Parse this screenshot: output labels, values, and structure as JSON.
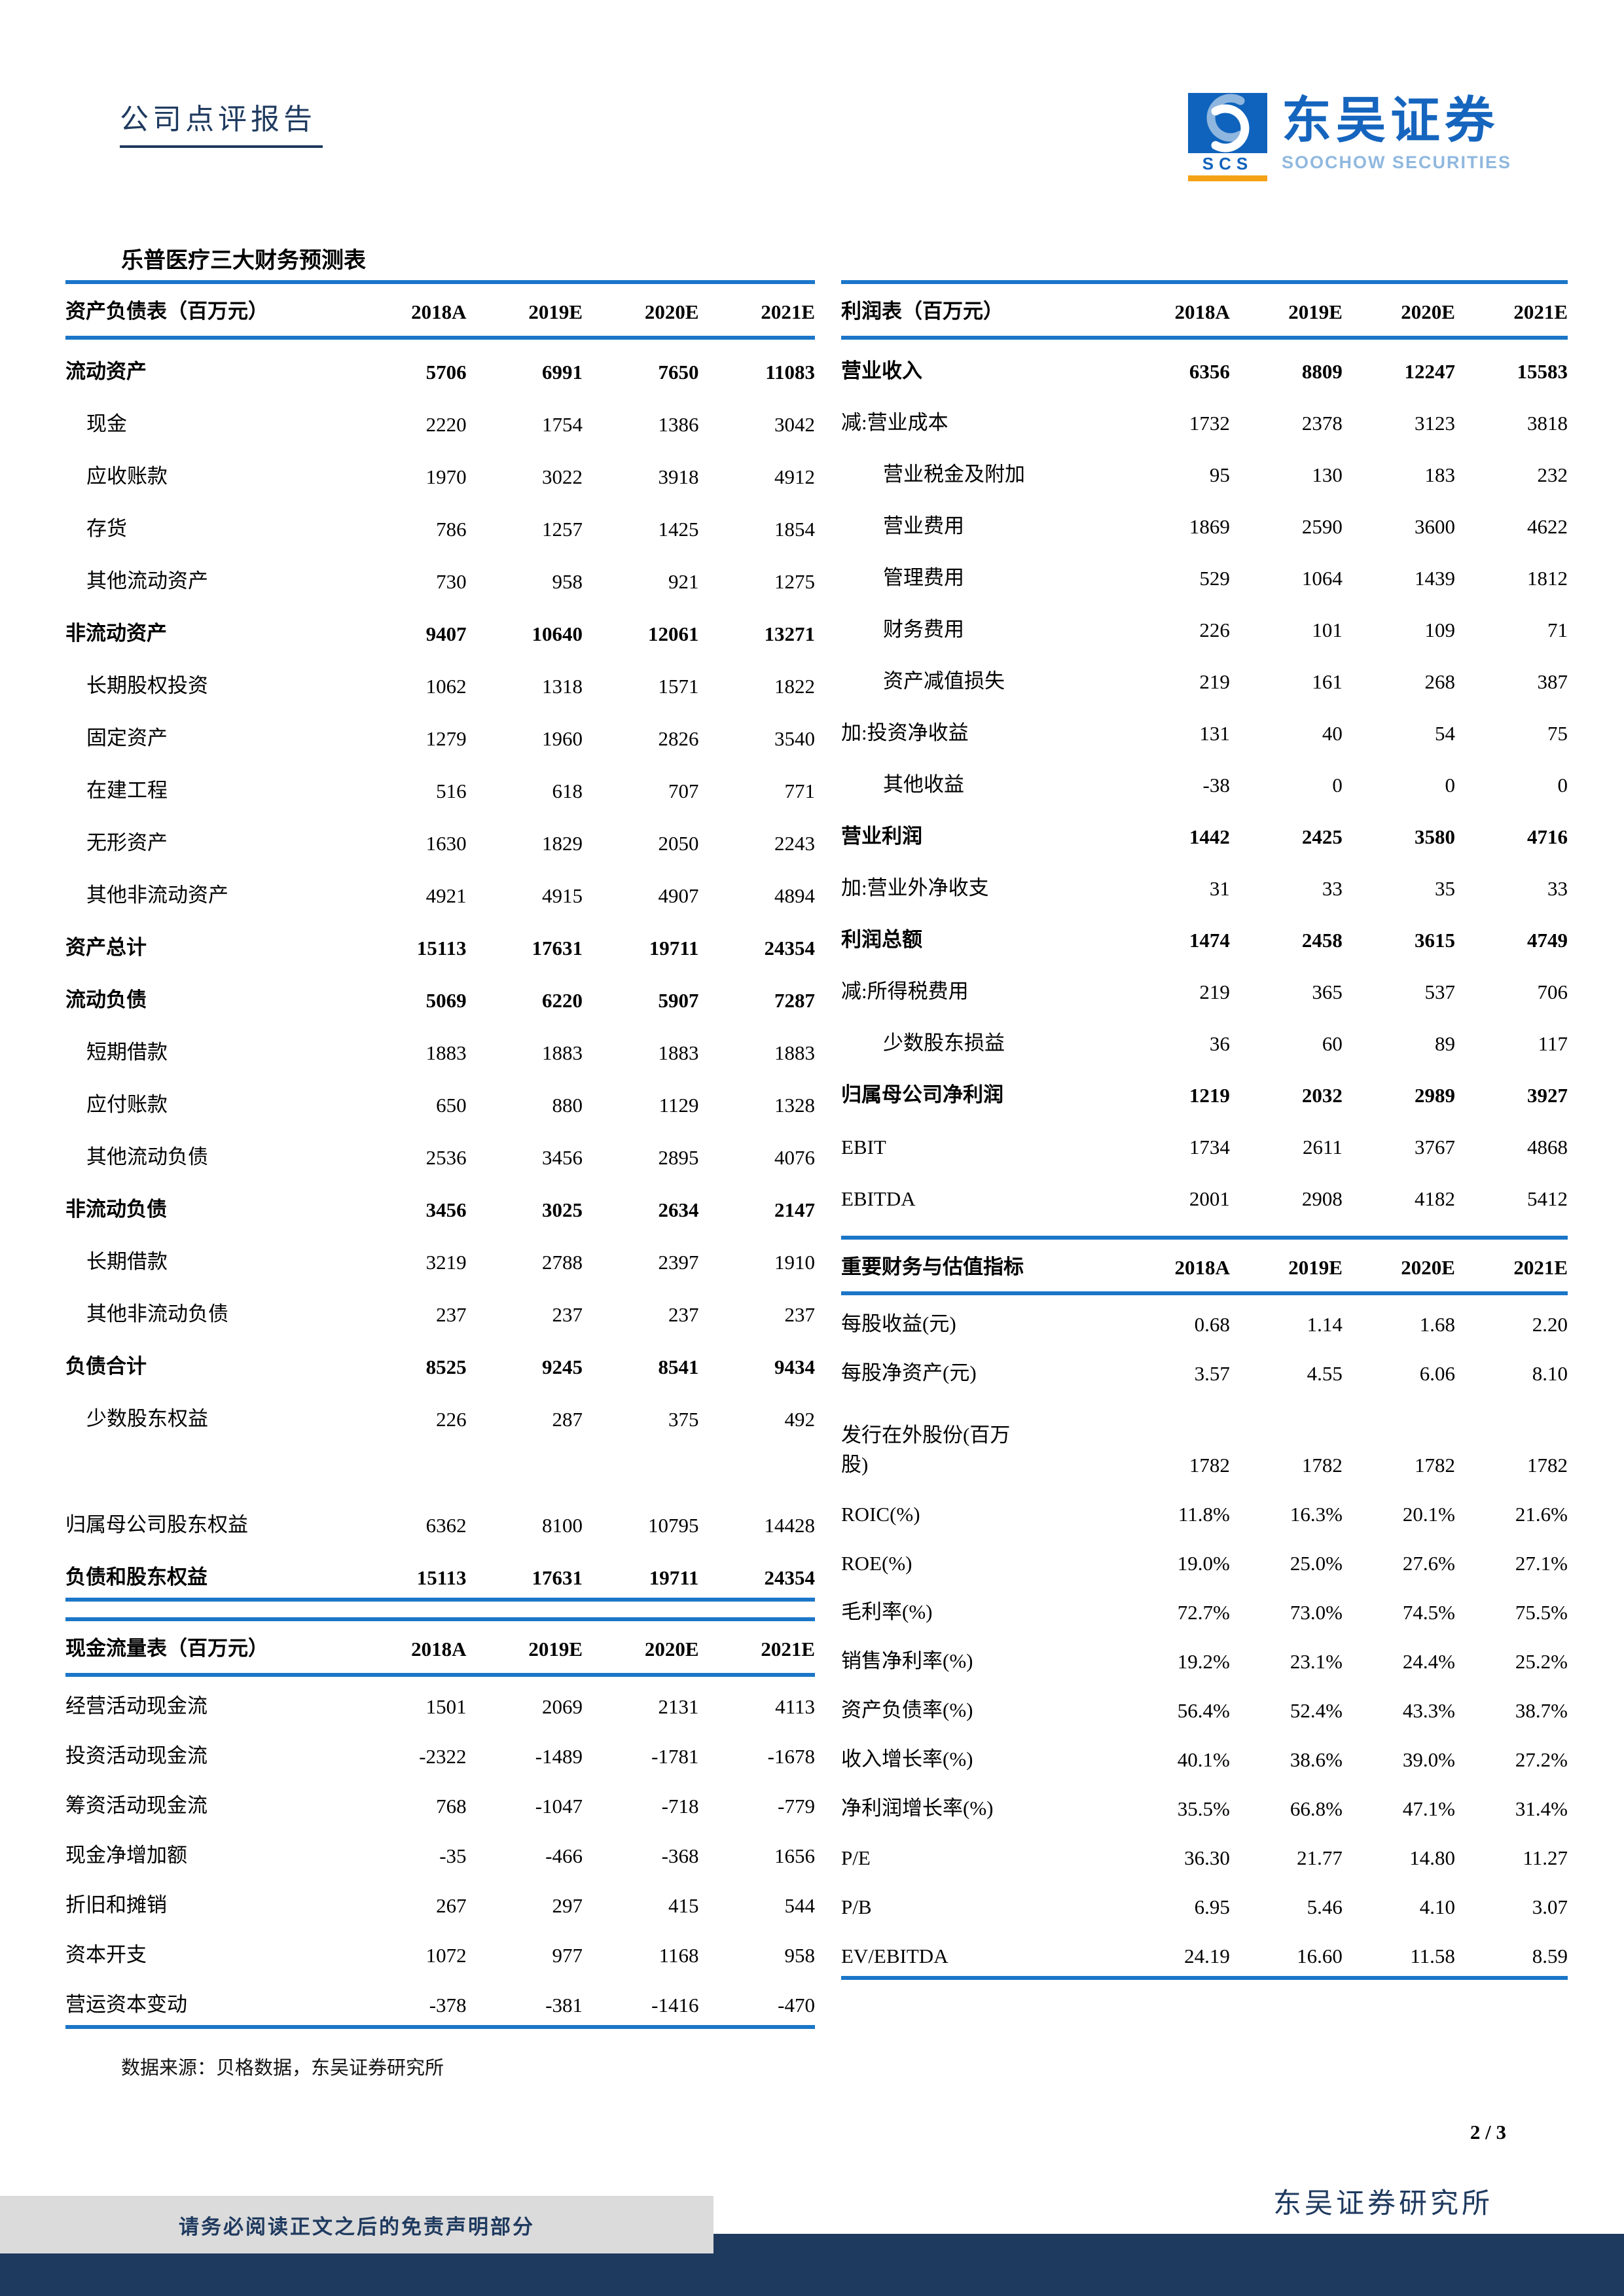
{
  "header": {
    "report_type": "公司点评报告",
    "logo": {
      "scs": "SCS",
      "cn_name": "东吴证券",
      "en_name": "SOOCHOW SECURITIES"
    }
  },
  "title": "乐普医疗三大财务预测表",
  "years": [
    "2018A",
    "2019E",
    "2020E",
    "2021E"
  ],
  "tables": {
    "balance_sheet": {
      "title": "资产负债表（百万元）",
      "rows": [
        {
          "label": "流动资产",
          "values": [
            "5706",
            "6991",
            "7650",
            "11083"
          ],
          "bold": true,
          "indent": 0
        },
        {
          "label": "现金",
          "values": [
            "2220",
            "1754",
            "1386",
            "3042"
          ],
          "indent": 1
        },
        {
          "label": "应收账款",
          "values": [
            "1970",
            "3022",
            "3918",
            "4912"
          ],
          "indent": 1
        },
        {
          "label": "存货",
          "values": [
            "786",
            "1257",
            "1425",
            "1854"
          ],
          "indent": 1
        },
        {
          "label": "其他流动资产",
          "values": [
            "730",
            "958",
            "921",
            "1275"
          ],
          "indent": 1
        },
        {
          "label": "非流动资产",
          "values": [
            "9407",
            "10640",
            "12061",
            "13271"
          ],
          "bold": true,
          "indent": 0
        },
        {
          "label": "长期股权投资",
          "values": [
            "1062",
            "1318",
            "1571",
            "1822"
          ],
          "indent": 1
        },
        {
          "label": "固定资产",
          "values": [
            "1279",
            "1960",
            "2826",
            "3540"
          ],
          "indent": 1
        },
        {
          "label": "在建工程",
          "values": [
            "516",
            "618",
            "707",
            "771"
          ],
          "indent": 1
        },
        {
          "label": "无形资产",
          "values": [
            "1630",
            "1829",
            "2050",
            "2243"
          ],
          "indent": 1
        },
        {
          "label": "其他非流动资产",
          "values": [
            "4921",
            "4915",
            "4907",
            "4894"
          ],
          "indent": 1
        },
        {
          "label": "资产总计",
          "values": [
            "15113",
            "17631",
            "19711",
            "24354"
          ],
          "bold": true,
          "indent": 0
        },
        {
          "label": "流动负债",
          "values": [
            "5069",
            "6220",
            "5907",
            "7287"
          ],
          "bold": true,
          "indent": 0
        },
        {
          "label": "短期借款",
          "values": [
            "1883",
            "1883",
            "1883",
            "1883"
          ],
          "indent": 1
        },
        {
          "label": "应付账款",
          "values": [
            "650",
            "880",
            "1129",
            "1328"
          ],
          "indent": 1
        },
        {
          "label": "其他流动负债",
          "values": [
            "2536",
            "3456",
            "2895",
            "4076"
          ],
          "indent": 1
        },
        {
          "label": "非流动负债",
          "values": [
            "3456",
            "3025",
            "2634",
            "2147"
          ],
          "bold": true,
          "indent": 0
        },
        {
          "label": "长期借款",
          "values": [
            "3219",
            "2788",
            "2397",
            "1910"
          ],
          "indent": 1
        },
        {
          "label": "其他非流动负债",
          "values": [
            "237",
            "237",
            "237",
            "237"
          ],
          "indent": 1
        },
        {
          "label": "负债合计",
          "values": [
            "8525",
            "9245",
            "8541",
            "9434"
          ],
          "bold": true,
          "indent": 0
        },
        {
          "label": "少数股东权益",
          "values": [
            "226",
            "287",
            "375",
            "492"
          ],
          "indent": 1
        },
        {
          "blank": true
        },
        {
          "label": "归属母公司股东权益",
          "values": [
            "6362",
            "8100",
            "10795",
            "14428"
          ],
          "indent": 0
        },
        {
          "label": "负债和股东权益",
          "values": [
            "15113",
            "17631",
            "19711",
            "24354"
          ],
          "bold": true,
          "indent": 0
        }
      ]
    },
    "cash_flow": {
      "title": "现金流量表（百万元）",
      "rows": [
        {
          "label": "经营活动现金流",
          "values": [
            "1501",
            "2069",
            "2131",
            "4113"
          ],
          "indent": 0
        },
        {
          "label": "投资活动现金流",
          "values": [
            "-2322",
            "-1489",
            "-1781",
            "-1678"
          ],
          "indent": 0
        },
        {
          "label": "筹资活动现金流",
          "values": [
            "768",
            "-1047",
            "-718",
            "-779"
          ],
          "indent": 0
        },
        {
          "label": "现金净增加额",
          "values": [
            "-35",
            "-466",
            "-368",
            "1656"
          ],
          "indent": 0
        },
        {
          "label": "折旧和摊销",
          "values": [
            "267",
            "297",
            "415",
            "544"
          ],
          "indent": 0
        },
        {
          "label": "资本开支",
          "values": [
            "1072",
            "977",
            "1168",
            "958"
          ],
          "indent": 0
        },
        {
          "label": "营运资本变动",
          "values": [
            "-378",
            "-381",
            "-1416",
            "-470"
          ],
          "indent": 0
        }
      ]
    },
    "income_statement": {
      "title": "利润表（百万元）",
      "rows": [
        {
          "label": "营业收入",
          "values": [
            "6356",
            "8809",
            "12247",
            "15583"
          ],
          "bold": true,
          "indent": 0
        },
        {
          "label": "减:营业成本",
          "values": [
            "1732",
            "2378",
            "3123",
            "3818"
          ],
          "indent": 0
        },
        {
          "label": "营业税金及附加",
          "values": [
            "95",
            "130",
            "183",
            "232"
          ],
          "indent": 2
        },
        {
          "label": "营业费用",
          "values": [
            "1869",
            "2590",
            "3600",
            "4622"
          ],
          "indent": 2
        },
        {
          "label": "管理费用",
          "values": [
            "529",
            "1064",
            "1439",
            "1812"
          ],
          "indent": 2
        },
        {
          "label": "财务费用",
          "values": [
            "226",
            "101",
            "109",
            "71"
          ],
          "indent": 2
        },
        {
          "label": "资产减值损失",
          "values": [
            "219",
            "161",
            "268",
            "387"
          ],
          "indent": 2
        },
        {
          "label": "加:投资净收益",
          "values": [
            "131",
            "40",
            "54",
            "75"
          ],
          "indent": 0
        },
        {
          "label": "其他收益",
          "values": [
            "-38",
            "0",
            "0",
            "0"
          ],
          "indent": 2
        },
        {
          "label": "营业利润",
          "values": [
            "1442",
            "2425",
            "3580",
            "4716"
          ],
          "bold": true,
          "indent": 0
        },
        {
          "label": "加:营业外净收支",
          "values": [
            "31",
            "33",
            "35",
            "33"
          ],
          "indent": 0
        },
        {
          "label": "利润总额",
          "values": [
            "1474",
            "2458",
            "3615",
            "4749"
          ],
          "bold": true,
          "indent": 0
        },
        {
          "label": "减:所得税费用",
          "values": [
            "219",
            "365",
            "537",
            "706"
          ],
          "indent": 0
        },
        {
          "label": "少数股东损益",
          "values": [
            "36",
            "60",
            "89",
            "117"
          ],
          "indent": 2
        },
        {
          "label": "归属母公司净利润",
          "values": [
            "1219",
            "2032",
            "2989",
            "3927"
          ],
          "bold": true,
          "indent": 0
        },
        {
          "label": "EBIT",
          "values": [
            "1734",
            "2611",
            "3767",
            "4868"
          ],
          "indent": 0
        },
        {
          "label": "EBITDA",
          "values": [
            "2001",
            "2908",
            "4182",
            "5412"
          ],
          "indent": 0
        }
      ]
    },
    "metrics": {
      "title": "重要财务与估值指标",
      "rows": [
        {
          "label": "每股收益(元)",
          "values": [
            "0.68",
            "1.14",
            "1.68",
            "2.20"
          ],
          "indent": 0
        },
        {
          "label": "每股净资产(元)",
          "values": [
            "3.57",
            "4.55",
            "6.06",
            "8.10"
          ],
          "indent": 0
        },
        {
          "label": "发行在外股份(百万\n股)",
          "values": [
            "1782",
            "1782",
            "1782",
            "1782"
          ],
          "indent": 0,
          "tall": true
        },
        {
          "label": "ROIC(%)",
          "values": [
            "11.8%",
            "16.3%",
            "20.1%",
            "21.6%"
          ],
          "indent": 0
        },
        {
          "label": "ROE(%)",
          "values": [
            "19.0%",
            "25.0%",
            "27.6%",
            "27.1%"
          ],
          "indent": 0
        },
        {
          "label": "毛利率(%)",
          "values": [
            "72.7%",
            "73.0%",
            "74.5%",
            "75.5%"
          ],
          "indent": 0
        },
        {
          "label": "销售净利率(%)",
          "values": [
            "19.2%",
            "23.1%",
            "24.4%",
            "25.2%"
          ],
          "indent": 0
        },
        {
          "label": "资产负债率(%)",
          "values": [
            "56.4%",
            "52.4%",
            "43.3%",
            "38.7%"
          ],
          "indent": 0
        },
        {
          "label": "收入增长率(%)",
          "values": [
            "40.1%",
            "38.6%",
            "39.0%",
            "27.2%"
          ],
          "indent": 0
        },
        {
          "label": "净利润增长率(%)",
          "values": [
            "35.5%",
            "66.8%",
            "47.1%",
            "31.4%"
          ],
          "indent": 0
        },
        {
          "label": "P/E",
          "values": [
            "36.30",
            "21.77",
            "14.80",
            "11.27"
          ],
          "indent": 0
        },
        {
          "label": "P/B",
          "values": [
            "6.95",
            "5.46",
            "4.10",
            "3.07"
          ],
          "indent": 0
        },
        {
          "label": "EV/EBITDA",
          "values": [
            "24.19",
            "16.60",
            "11.58",
            "8.59"
          ],
          "indent": 0
        }
      ]
    }
  },
  "source_note": "数据来源：贝格数据，东吴证券研究所",
  "page_number": "2 / 3",
  "footer": {
    "research_institute": "东吴证券研究所",
    "disclaimer": "请务必阅读正文之后的免责声明部分"
  },
  "colors": {
    "table_rule_blue": "#1B76C8",
    "navy": "#1F3A5F",
    "logo_blue": "#1565BE",
    "logo_light_blue": "#90B8DF",
    "logo_orange": "#F5A216",
    "disclaimer_gray": "#DBDBDB"
  }
}
